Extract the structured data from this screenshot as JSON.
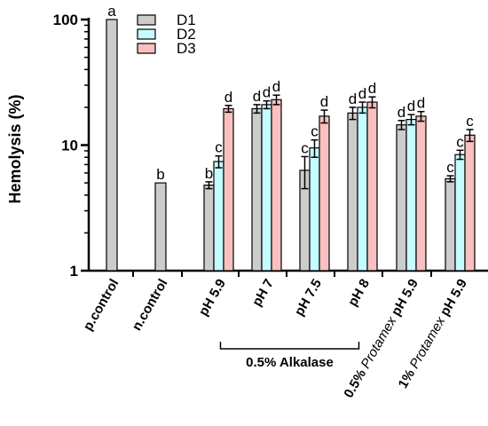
{
  "chart_data": {
    "type": "bar",
    "yscale": "log",
    "ylim": [
      1,
      100
    ],
    "yticks": [
      "1",
      "10",
      "100"
    ],
    "ylabel": "Hemolysis (%)",
    "xlabel": "",
    "legend": {
      "placement": "top-center",
      "entries": [
        "D1",
        "D2",
        "D3"
      ]
    },
    "colors": {
      "D1": "#cccccc",
      "D2": "#c6fbff",
      "D3": "#f8c0c0"
    },
    "categories": [
      {
        "label": "p.control"
      },
      {
        "label": "n.control"
      },
      {
        "label": "pH 5.9"
      },
      {
        "label": "pH 7"
      },
      {
        "label": "pH 7.5"
      },
      {
        "label": "pH 8"
      },
      {
        "label": "0.5% ",
        "label_italic": "Protamex",
        "label_tail": " pH 5.9"
      },
      {
        "label": "1% ",
        "label_italic": "Protamex",
        "label_tail": " pH 5.9"
      }
    ],
    "group_label": "0.5% Alkalase",
    "group_span": [
      2,
      5
    ],
    "bars": [
      {
        "category": 0,
        "series": "D1",
        "value": 100,
        "err": 0,
        "letter": "a"
      },
      {
        "category": 1,
        "series": "D1",
        "value": 5,
        "err": 0,
        "letter": "b"
      },
      {
        "category": 2,
        "series": "D1",
        "value": 4.8,
        "err": 0.3,
        "letter": "b"
      },
      {
        "category": 2,
        "series": "D2",
        "value": 7.4,
        "err": 0.8,
        "letter": "c"
      },
      {
        "category": 2,
        "series": "D3",
        "value": 19.5,
        "err": 1.2,
        "letter": "d"
      },
      {
        "category": 3,
        "series": "D1",
        "value": 19.5,
        "err": 1.5,
        "letter": "d"
      },
      {
        "category": 3,
        "series": "D2",
        "value": 21,
        "err": 1.5,
        "letter": "d"
      },
      {
        "category": 3,
        "series": "D3",
        "value": 23,
        "err": 2,
        "letter": "d"
      },
      {
        "category": 4,
        "series": "D1",
        "value": 6.3,
        "err": 1.8,
        "letter": "c"
      },
      {
        "category": 4,
        "series": "D2",
        "value": 9.5,
        "err": 1.5,
        "letter": "c"
      },
      {
        "category": 4,
        "series": "D3",
        "value": 17,
        "err": 2,
        "letter": "d"
      },
      {
        "category": 5,
        "series": "D1",
        "value": 18,
        "err": 2,
        "letter": "d"
      },
      {
        "category": 5,
        "series": "D2",
        "value": 20,
        "err": 2,
        "letter": "d"
      },
      {
        "category": 5,
        "series": "D3",
        "value": 22,
        "err": 2.2,
        "letter": "d"
      },
      {
        "category": 6,
        "series": "D1",
        "value": 14.5,
        "err": 1.2,
        "letter": "d"
      },
      {
        "category": 6,
        "series": "D2",
        "value": 16,
        "err": 1.5,
        "letter": "d"
      },
      {
        "category": 6,
        "series": "D3",
        "value": 17,
        "err": 1.5,
        "letter": "d"
      },
      {
        "category": 7,
        "series": "D1",
        "value": 5.4,
        "err": 0.3,
        "letter": "c"
      },
      {
        "category": 7,
        "series": "D2",
        "value": 8.4,
        "err": 0.7,
        "letter": "c"
      },
      {
        "category": 7,
        "series": "D3",
        "value": 12,
        "err": 1.3,
        "letter": "c"
      }
    ]
  }
}
